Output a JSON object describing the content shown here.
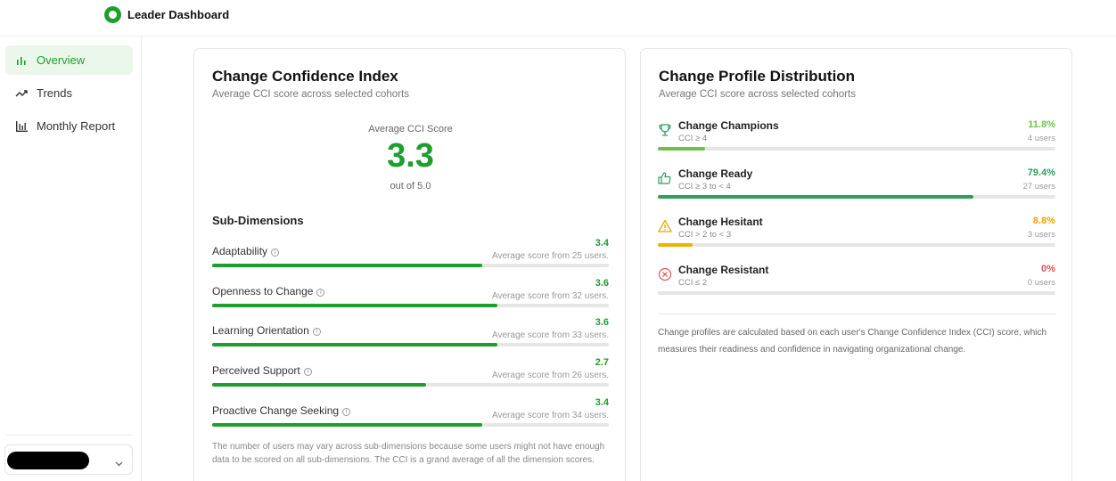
{
  "app": {
    "title": "Leader Dashboard"
  },
  "sidebar": {
    "items": [
      {
        "label": "Overview",
        "icon": "bar-chart-icon",
        "active": true
      },
      {
        "label": "Trends",
        "icon": "trend-line-icon",
        "active": false
      },
      {
        "label": "Monthly Report",
        "icon": "report-chart-icon",
        "active": false
      }
    ],
    "user_selector": {
      "icon": "chevron-down-icon"
    }
  },
  "cci": {
    "title": "Change Confidence Index",
    "subtitle": "Average CCI score across selected cohorts",
    "avg_label": "Average CCI Score",
    "avg_score": "3.3",
    "out_of": "out of 5.0",
    "subdimensions_title": "Sub-Dimensions",
    "dimensions": [
      {
        "name": "Adaptability",
        "score": "3.4",
        "score_value": 3.4,
        "count": "Average score from 25 users."
      },
      {
        "name": "Openness to Change",
        "score": "3.6",
        "score_value": 3.6,
        "count": "Average score from 32 users."
      },
      {
        "name": "Learning Orientation",
        "score": "3.6",
        "score_value": 3.6,
        "count": "Average score from 33 users."
      },
      {
        "name": "Perceived Support",
        "score": "2.7",
        "score_value": 2.7,
        "count": "Average score from 26 users."
      },
      {
        "name": "Proactive Change Seeking",
        "score": "3.4",
        "score_value": 3.4,
        "count": "Average score from 34 users."
      }
    ],
    "max_score": 5,
    "note": "The number of users may vary across sub-dimensions because some users might not have enough data to be scored on all sub-dimensions. The CCI is a grand average of all the dimension scores."
  },
  "profile": {
    "title": "Change Profile Distribution",
    "subtitle": "Average CCI score across selected cohorts",
    "groups": [
      {
        "name": "Change Champions",
        "range": "CCI ≥ 4",
        "percent": "11.8%",
        "percent_value": 11.8,
        "users": "4 users",
        "color": "#6cc24a",
        "text_color": "#6cc24a",
        "icon": "trophy-icon"
      },
      {
        "name": "Change Ready",
        "range": "CCI ≥ 3 to < 4",
        "percent": "79.4%",
        "percent_value": 79.4,
        "users": "27 users",
        "color": "#2e9e5b",
        "text_color": "#2e9e5b",
        "icon": "thumbs-up-icon"
      },
      {
        "name": "Change Hesitant",
        "range": "CCI > 2 to < 3",
        "percent": "8.8%",
        "percent_value": 8.8,
        "users": "3 users",
        "color": "#f0b100",
        "text_color": "#f0a500",
        "icon": "warning-icon"
      },
      {
        "name": "Change Resistant",
        "range": "CCI ≤ 2",
        "percent": "0%",
        "percent_value": 0,
        "users": "0 users",
        "color": "#e05252",
        "text_color": "#e05252",
        "icon": "x-circle-icon"
      }
    ],
    "note": "Change profiles are calculated based on each user's Change Confidence Index (CCI) score, which measures their readiness and confidence in navigating organizational change."
  }
}
